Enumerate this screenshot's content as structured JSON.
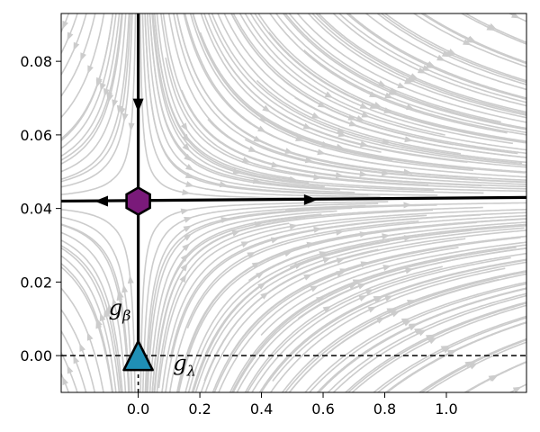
{
  "chart_data": {
    "type": "streamplot",
    "title": "",
    "xlabel": "",
    "ylabel": "",
    "xlim": [
      -0.25,
      1.26
    ],
    "ylim": [
      -0.01,
      0.093
    ],
    "x_ticks": [
      {
        "value": 0.0,
        "label": "0.0"
      },
      {
        "value": 0.2,
        "label": "0.2"
      },
      {
        "value": 0.4,
        "label": "0.4"
      },
      {
        "value": 0.6,
        "label": "0.6"
      },
      {
        "value": 0.8,
        "label": "0.8"
      },
      {
        "value": 1.0,
        "label": "1.0"
      }
    ],
    "y_ticks": [
      {
        "value": 0.0,
        "label": "0.00"
      },
      {
        "value": 0.02,
        "label": "0.02"
      },
      {
        "value": 0.04,
        "label": "0.04"
      },
      {
        "value": 0.06,
        "label": "0.06"
      },
      {
        "value": 0.08,
        "label": "0.08"
      }
    ],
    "grid": false,
    "fixed_points": [
      {
        "name": "gaussian",
        "x": 0.0,
        "y": 0.0,
        "marker": "triangle",
        "color": "#1f8fb5"
      },
      {
        "name": "wilson-fisher",
        "x": 0.0,
        "y": 0.042,
        "marker": "hexagon",
        "color": "#7a1a7a"
      }
    ],
    "separatrices": [
      {
        "name": "vertical",
        "x": [
          0.0,
          0.0
        ],
        "y": [
          0.093,
          0.0
        ],
        "direction": "toward-fixed-point"
      },
      {
        "name": "horizontal",
        "x": [
          -0.25,
          1.26
        ],
        "y": [
          0.042,
          0.043
        ],
        "direction": "away-from-fixed-point"
      }
    ],
    "reference_lines": [
      {
        "axis": "y",
        "value": 0.0,
        "style": "dashed"
      },
      {
        "axis": "x",
        "value": 0.0,
        "range": [
          -0.01,
          0.0
        ],
        "style": "dashed"
      }
    ],
    "annotations": [
      {
        "main": "g",
        "sub": "β",
        "x": -0.06,
        "y": 0.011
      },
      {
        "main": "g",
        "sub": "λ",
        "x": 0.15,
        "y": -0.004
      }
    ],
    "stream_color": "#cccccc"
  }
}
